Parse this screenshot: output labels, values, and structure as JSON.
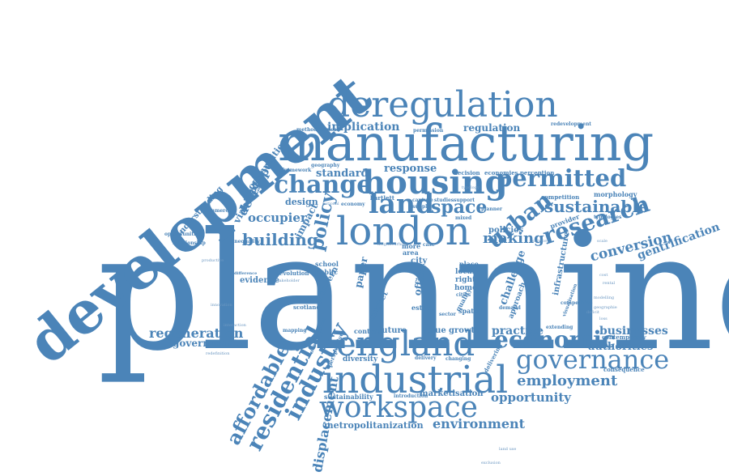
{
  "color": "#4b84b8",
  "words": {
    "planning": "planning",
    "development": "development",
    "manufacturing": "manufacturing",
    "deregulation": "deregulation",
    "london": "london",
    "industrial": "industrial",
    "workspace": "workspace",
    "england": "england",
    "housing": "housing",
    "change": "change",
    "governance": "governance",
    "economic": "economic",
    "permitted": "permitted",
    "research": "research",
    "land": "land",
    "space": "space",
    "sustainable": "sustainable",
    "urban": "urban",
    "employment": "employment",
    "industry": "industry",
    "residential": "residential",
    "affordable": "affordable",
    "displacement": "displacement",
    "building": "building",
    "policy": "policy",
    "conversion": "conversion",
    "gentrification": "gentrification",
    "making": "making",
    "regeneration": "regeneration",
    "opportunity": "opportunity",
    "environment": "environment",
    "practice": "practice",
    "businesses": "businesses",
    "authorities": "authorities",
    "government": "government",
    "implication": "implication",
    "regulation": "regulation",
    "occupier": "occupier",
    "response": "response",
    "standard": "standard",
    "developer": "developer",
    "viability": "viability",
    "communities": "communities",
    "metropolitanization": "metropolitanization",
    "marketisation": "marketisation",
    "sustainability": "sustainability",
    "infrastructure": "infrastructure",
    "challenge": "challenge",
    "policies": "policies",
    "value": "value",
    "growth": "growth",
    "future": "future",
    "context": "context",
    "diversity": "diversity",
    "evidence": "evidence",
    "design": "design",
    "impact": "impact",
    "paper": "paper",
    "concern": "concern",
    "office": "office",
    "city": "city",
    "local": "local",
    "right": "right",
    "home": "home",
    "area": "area",
    "more": "more",
    "school": "school",
    "public": "public",
    "devolution": "devolution",
    "strategy": "strategy",
    "scotland": "scotland",
    "market": "market",
    "estate": "estate",
    "quality": "quality",
    "approach": "approach",
    "spatial": "spatial",
    "demand": "demand",
    "consequence": "consequence",
    "contemporary": "contemporary",
    "extending": "extending",
    "competition": "competition",
    "morphology": "morphology",
    "provider": "provider",
    "typologies": "typologies",
    "understanding": "understanding",
    "opportunities": "opportunities",
    "relationship": "relationship",
    "commercial": "commercial",
    "framework": "framework",
    "geography": "geography",
    "decision": "decision",
    "economies": "economies",
    "perception": "perception",
    "permission": "permission",
    "redevelopment": "redevelopment",
    "methodological": "methodological",
    "bartlett": "bartlett",
    "economy": "economy",
    "capture": "capture",
    "supply": "supply",
    "studies": "studies",
    "support": "support",
    "mixed": "mixed",
    "case": "case",
    "place": "place",
    "cities": "cities",
    "sector": "sector",
    "delivery": "delivery",
    "changing": "changing",
    "introduction": "introduction",
    "perspective": "perspective",
    "inequality": "inequality",
    "neoliberalism": "neoliberalism",
    "difference": "difference",
    "mapping": "mapping",
    "competitive": "competitive",
    "planner": "planner",
    "visualisation": "visualisation",
    "delivering": "delivering",
    "scale": "scale",
    "cost": "cost",
    "rental": "rental",
    "service": "service",
    "deficit": "deficit",
    "loss": "loss",
    "land use": "land use",
    "exclusion": "exclusion",
    "geographie": "geographie",
    "modelling": "modelling",
    "redefinition": "redefinition",
    "innovation": "innovation",
    "productive": "productive",
    "interaction": "interaction",
    "stakeholder": "stakeholder",
    "national": "national",
    "neighbourhood": "neighbourhood",
    "typology": "typology"
  }
}
